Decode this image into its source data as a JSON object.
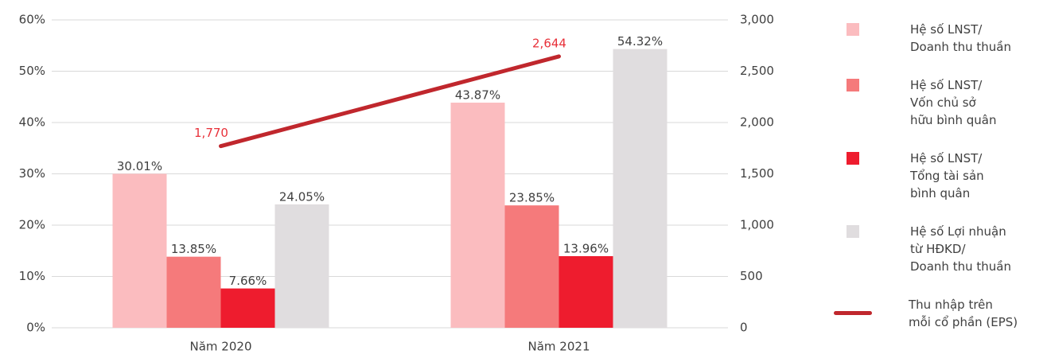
{
  "chart_data": {
    "type": "bar",
    "categories": [
      "Năm 2020",
      "Năm 2021"
    ],
    "series": [
      {
        "name": "Hệ số LNST/\nDoanh thu thuần",
        "color": "#fbbcbf",
        "values": [
          30.01,
          43.87
        ],
        "value_labels": [
          "30.01%",
          "43.87%"
        ]
      },
      {
        "name": "Hệ số LNST/\nVốn chủ sở\nhữu bình quân",
        "color": "#f57a7b",
        "values": [
          13.85,
          23.85
        ],
        "value_labels": [
          "13.85%",
          "23.85%"
        ]
      },
      {
        "name": "Hệ số LNST/\nTổng tài sản\nbình quân",
        "color": "#ee1c2e",
        "values": [
          7.66,
          13.96
        ],
        "value_labels": [
          "7.66%",
          "13.96%"
        ]
      },
      {
        "name": "Hệ số Lợi nhuận\ntừ HĐKD/\nDoanh thu thuần",
        "color": "#e0dddf",
        "values": [
          24.05,
          54.32
        ],
        "value_labels": [
          "24.05%",
          "54.32%"
        ]
      },
      {
        "name": "Thu nhập trên\nmỗi cổ phần (EPS)",
        "color": "#c0272d",
        "type": "line",
        "axis": "y2",
        "values": [
          1770,
          2644
        ],
        "value_labels": [
          "1,770",
          "2,644"
        ],
        "label_color": "#e8313a"
      }
    ],
    "ylim": [
      0,
      60
    ],
    "yticks": [
      {
        "value": 0,
        "label": "0%"
      },
      {
        "value": 10,
        "label": "10%"
      },
      {
        "value": 20,
        "label": "20%"
      },
      {
        "value": 30,
        "label": "30%"
      },
      {
        "value": 40,
        "label": "40%"
      },
      {
        "value": 50,
        "label": "50%"
      },
      {
        "value": 60,
        "label": "60%"
      }
    ],
    "y2lim": [
      0,
      3000
    ],
    "y2ticks": [
      0,
      500,
      {
        "value": 1000,
        "label": "1,000"
      },
      {
        "value": 1500,
        "label": "1,500"
      },
      {
        "value": 2000,
        "label": "2,000"
      },
      {
        "value": 2500,
        "label": "2,500"
      },
      {
        "value": 3000,
        "label": "3,000"
      }
    ],
    "grid": true,
    "legend": "right"
  }
}
